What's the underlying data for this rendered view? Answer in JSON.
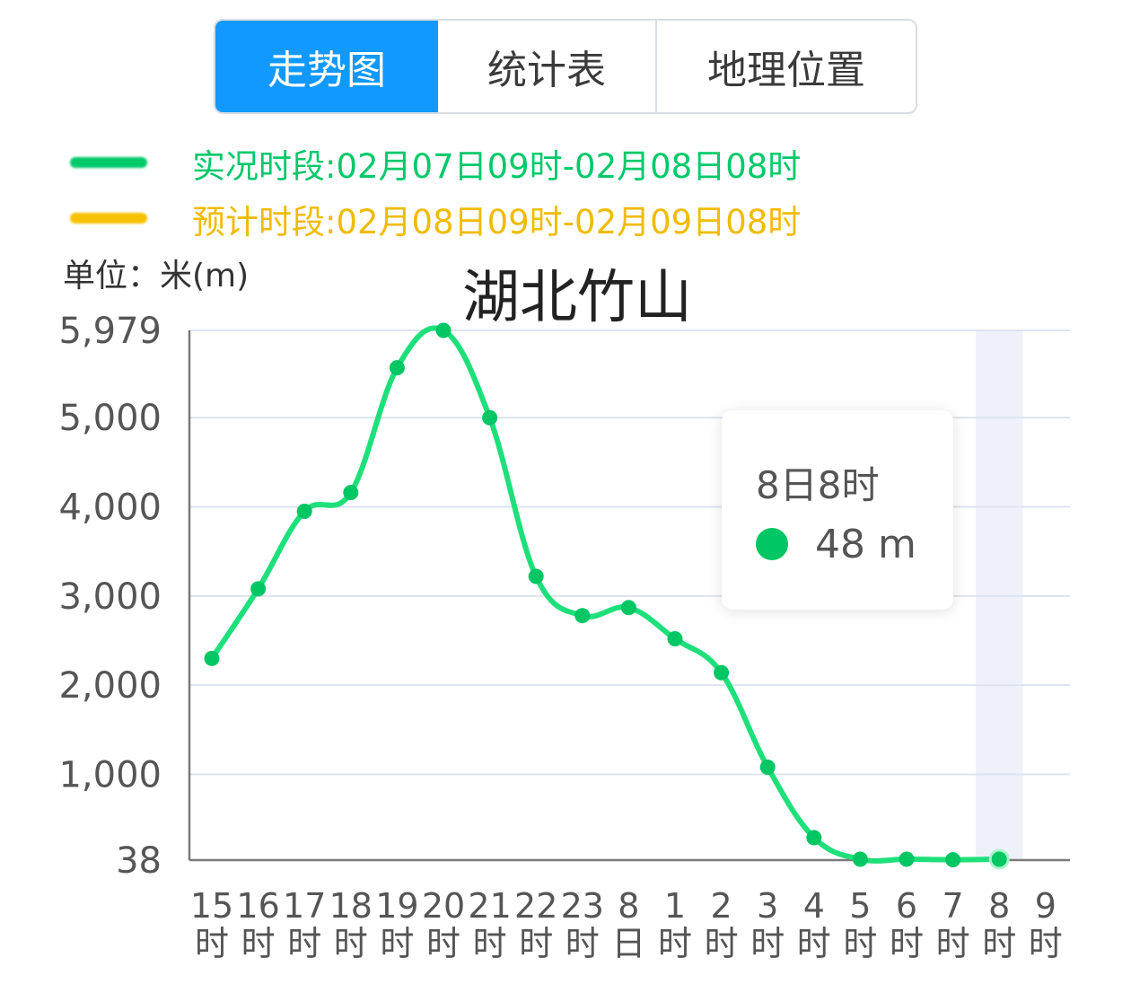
{
  "tabs": [
    {
      "label": "走势图",
      "active": true
    },
    {
      "label": "统计表",
      "active": false
    },
    {
      "label": "地理位置",
      "active": false
    }
  ],
  "legend": {
    "observed": {
      "text": "实况时段:02月07日09时-02月08日08时",
      "color": "#00c96a"
    },
    "forecast": {
      "text": "预计时段:02月08日09时-02月09日08时",
      "color": "#f5c100"
    }
  },
  "unit_label": "单位：米(m)",
  "tooltip": {
    "time": "8日8时",
    "value": "48 m"
  },
  "colors": {
    "accent": "#1199ff",
    "line": "#1ee07a",
    "dot": "#00c663",
    "highlight": "#eef1f9"
  },
  "chart_data": {
    "type": "line",
    "title": "湖北竹山",
    "ylabel": "单位：米(m)",
    "ylim": [
      38,
      5979
    ],
    "yticks": [
      38,
      1000,
      2000,
      3000,
      4000,
      5000,
      5979
    ],
    "ytick_labels": [
      "38",
      "1,000",
      "2,000",
      "3,000",
      "4,000",
      "5,000",
      "5,979"
    ],
    "categories": [
      "15时",
      "16时",
      "17时",
      "18时",
      "19时",
      "20时",
      "21时",
      "22时",
      "23时",
      "8日",
      "1时",
      "2时",
      "3时",
      "4时",
      "5时",
      "6时",
      "7时",
      "8时",
      "9时"
    ],
    "series": [
      {
        "values": [
          2300,
          3080,
          3950,
          4160,
          5560,
          5979,
          5000,
          3220,
          2780,
          2870,
          2520,
          2140,
          1080,
          290,
          48,
          48,
          42,
          48,
          null
        ]
      }
    ],
    "highlight_category": "8时",
    "grid": true
  }
}
